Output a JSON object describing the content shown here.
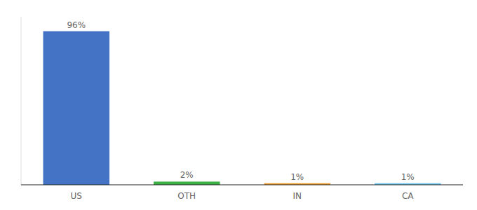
{
  "chart_data": {
    "type": "bar",
    "categories": [
      "US",
      "OTH",
      "IN",
      "CA"
    ],
    "values": [
      96,
      2,
      1,
      1
    ],
    "value_labels": [
      "96%",
      "2%",
      "1%",
      "1%"
    ],
    "colors": [
      "#4472c4",
      "#3cb044",
      "#f0a030",
      "#70c8f0"
    ],
    "ylim": [
      0,
      105
    ],
    "data_labels": true,
    "tick_labels": "x"
  }
}
